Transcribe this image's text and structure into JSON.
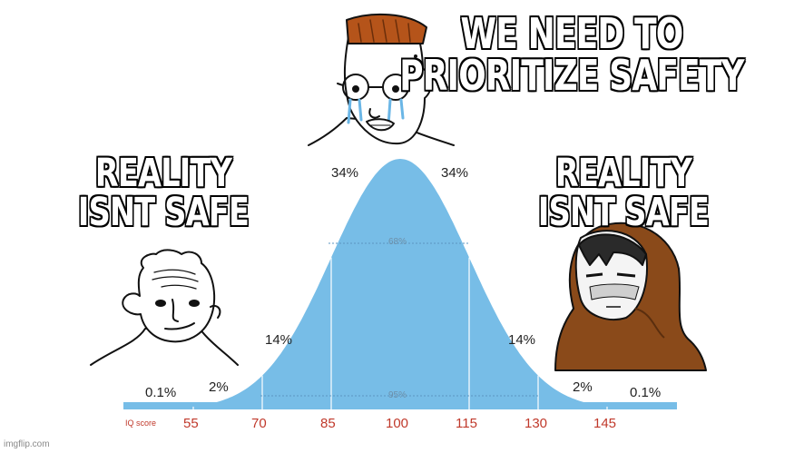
{
  "captions": {
    "top": "WE NEED TO PRIORITIZE SAFETY",
    "left": "REALITY ISNT SAFE",
    "right": "REALITY ISNT SAFE"
  },
  "chart_data": {
    "type": "area",
    "x_axis_label": "IQ score",
    "ticks": [
      "55",
      "70",
      "85",
      "100",
      "115",
      "130",
      "145"
    ],
    "segment_labels": {
      "left_tail": "0.1%",
      "left_2": "2%",
      "left_14": "14%",
      "left_34": "34%",
      "right_34": "34%",
      "right_14": "14%",
      "right_2": "2%",
      "right_tail": "0.1%",
      "band_68": "68%",
      "band_95": "95%"
    }
  },
  "characters": {
    "top": "crying-soyjak-with-glasses",
    "left": "smug-wojak",
    "right": "hooded-sage"
  },
  "colors": {
    "curve_fill": "#77bde7",
    "axis_text": "#c0392b",
    "caption_fill": "#ffffff",
    "caption_stroke": "#000000"
  },
  "watermark": "imgflip.com"
}
